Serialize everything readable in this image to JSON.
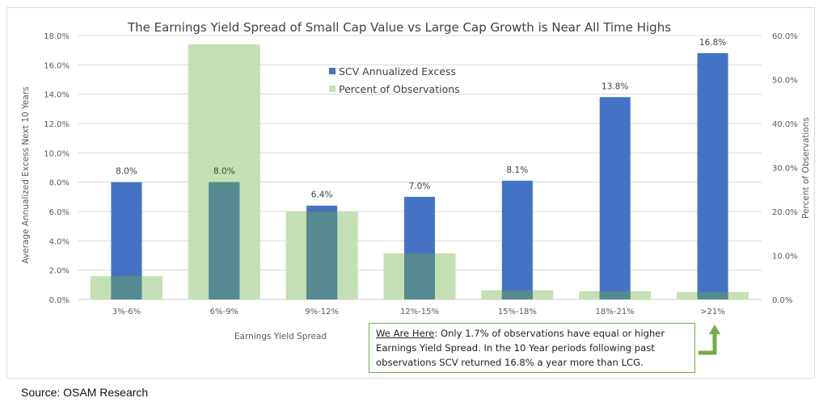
{
  "chart_data": {
    "type": "bar",
    "title": "The Earnings Yield Spread of Small Cap Value vs Large Cap Growth is Near All Time Highs",
    "xlabel": "Earnings Yield Spread",
    "ylabel": "Average Annualized Excess Next 10 Years",
    "y2label": "Percent of Observations",
    "categories": [
      "3%-6%",
      "6%-9%",
      "9%-12%",
      "12%-15%",
      "15%-18%",
      "18%-21%",
      ">21%"
    ],
    "series": [
      {
        "name": "SCV Annualized Excess",
        "axis": "left",
        "color": "#4472c4",
        "values": [
          8.0,
          8.0,
          6.4,
          7.0,
          8.1,
          13.8,
          16.8
        ],
        "data_labels": [
          "8.0%",
          "8.0%",
          "6.4%",
          "7.0%",
          "8.1%",
          "13.8%",
          "16.8%"
        ]
      },
      {
        "name": "Percent of Observations",
        "axis": "right",
        "color": "#a9d18e",
        "values": [
          5.3,
          58.0,
          20.0,
          10.5,
          2.1,
          1.9,
          1.7
        ]
      }
    ],
    "ylim": [
      0,
      18
    ],
    "y2lim": [
      0,
      60
    ],
    "yticks": [
      "0.0%",
      "2.0%",
      "4.0%",
      "6.0%",
      "8.0%",
      "10.0%",
      "12.0%",
      "14.0%",
      "16.0%",
      "18.0%"
    ],
    "y2ticks": [
      "0.0%",
      "10.0%",
      "20.0%",
      "30.0%",
      "40.0%",
      "50.0%",
      "60.0%"
    ],
    "grid": true,
    "legend": "top-center"
  },
  "annotation": {
    "lead": "We Are Here",
    "text": ": Only 1.7% of observations have equal or higher Earnings Yield Spread.  In the 10 Year periods following past observations SCV returned 16.8% a year more than LCG.",
    "arrow_icon": "up-arrow-icon",
    "color": "#70ad47"
  },
  "source": "Source: OSAM Research"
}
